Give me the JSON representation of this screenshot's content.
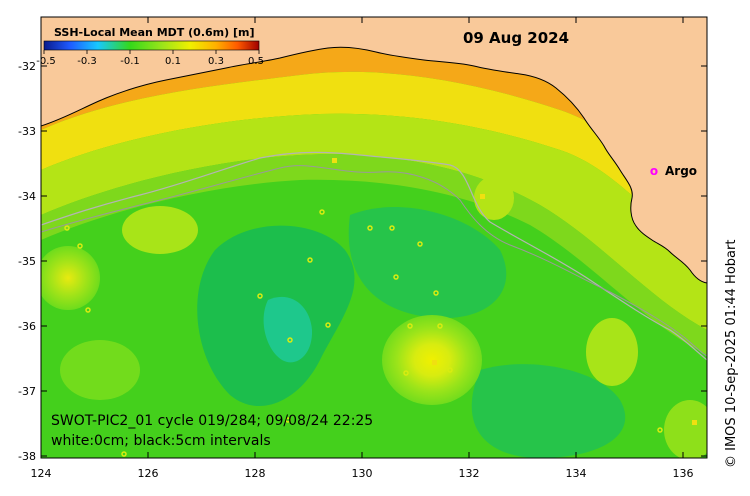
{
  "map": {
    "date": "09 Aug 2024",
    "colorbar": {
      "title": "SSH-Local Mean MDT (0.6m) [m]",
      "ticks": [
        "-0.5",
        "-0.3",
        "-0.1",
        "0.1",
        "0.3",
        "0.5"
      ],
      "colors": [
        "#0a1a8c",
        "#1f5aff",
        "#18c8ff",
        "#34d81a",
        "#9be41a",
        "#f0f000",
        "#ffb000",
        "#ff5a00",
        "#a00000"
      ]
    },
    "legend": {
      "argo_symbol": "o",
      "argo_label": "Argo"
    },
    "info_line1": "SWOT-PIC2_01 cycle 019/284; 09/08/24 22:25",
    "info_line2": "white:0cm; black:5cm intervals",
    "credit": "© IMOS 10-Sep-2025 01:44 Hobart",
    "axes": {
      "x_ticks": [
        "124",
        "126",
        "128",
        "130",
        "132",
        "134",
        "136"
      ],
      "y_ticks": [
        "-32",
        "-33",
        "-34",
        "-35",
        "-36",
        "-37",
        "-38"
      ],
      "xlim": [
        124,
        136.5
      ],
      "ylim": [
        -38.1,
        -31.3
      ]
    },
    "colors": {
      "land": "#f9c99a",
      "base_sea": "#44d01c",
      "argo_marker": "#ff00ff"
    }
  }
}
